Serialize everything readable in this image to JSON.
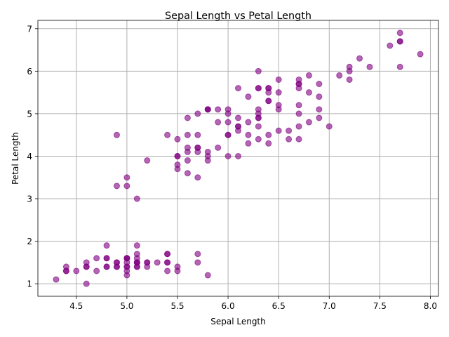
{
  "chart_data": {
    "type": "scatter",
    "title": "Sepal Length vs Petal Length",
    "xlabel": "Sepal Length",
    "ylabel": "Petal Length",
    "xlim": [
      4.12,
      8.08
    ],
    "ylim": [
      0.705,
      7.195
    ],
    "xticks": [
      4.5,
      5.0,
      5.5,
      6.0,
      6.5,
      7.0,
      7.5,
      8.0
    ],
    "xtick_labels": [
      "4.5",
      "5.0",
      "5.5",
      "6.0",
      "6.5",
      "7.0",
      "7.5",
      "8.0"
    ],
    "yticks": [
      1,
      2,
      3,
      4,
      5,
      6,
      7
    ],
    "ytick_labels": [
      "1",
      "2",
      "3",
      "4",
      "5",
      "6",
      "7"
    ],
    "grid": true,
    "marker_color": "#800080",
    "marker_alpha": 0.6,
    "series": [
      {
        "x": [
          5.1,
          4.9,
          4.7,
          4.6,
          5.0,
          5.4,
          4.6,
          5.0,
          4.4,
          4.9,
          5.4,
          4.8,
          4.8,
          4.3,
          5.8,
          5.7,
          5.4,
          5.1,
          5.7,
          5.1,
          5.4,
          5.1,
          4.6,
          5.1,
          4.8,
          5.0,
          5.0,
          5.2,
          5.2,
          4.7,
          4.8,
          5.4,
          5.2,
          5.5,
          4.9,
          5.0,
          5.5,
          4.9,
          4.4,
          5.1,
          5.0,
          4.5,
          4.4,
          5.0,
          5.1,
          4.8,
          5.1,
          4.6,
          5.3,
          5.0,
          7.0,
          6.4,
          6.9,
          5.5,
          6.5,
          5.7,
          6.3,
          4.9,
          6.6,
          5.2,
          5.0,
          5.9,
          6.0,
          6.1,
          5.6,
          6.7,
          5.6,
          5.8,
          6.2,
          5.6,
          5.9,
          6.1,
          6.3,
          6.1,
          6.4,
          6.6,
          6.8,
          6.7,
          6.0,
          5.7,
          5.5,
          5.5,
          5.8,
          6.0,
          5.4,
          6.0,
          6.7,
          6.3,
          5.6,
          5.5,
          5.5,
          6.1,
          5.8,
          5.0,
          5.6,
          5.7,
          5.7,
          6.2,
          5.1,
          5.7,
          6.3,
          5.8,
          7.1,
          6.3,
          6.5,
          7.6,
          4.9,
          7.3,
          6.7,
          7.2,
          6.5,
          6.4,
          6.8,
          5.7,
          5.8,
          6.4,
          6.5,
          7.7,
          7.7,
          6.0,
          6.9,
          5.6,
          7.7,
          6.3,
          6.7,
          7.2,
          6.2,
          6.1,
          6.4,
          7.2,
          7.4,
          7.9,
          6.4,
          6.3,
          6.1,
          7.7,
          6.3,
          6.4,
          6.0,
          6.9,
          6.7,
          6.9,
          5.8,
          6.8,
          6.7,
          6.7,
          6.3,
          6.5,
          6.2,
          5.9
        ],
        "y": [
          1.4,
          1.4,
          1.3,
          1.5,
          1.4,
          1.7,
          1.4,
          1.5,
          1.4,
          1.5,
          1.5,
          1.6,
          1.4,
          1.1,
          1.2,
          1.5,
          1.3,
          1.4,
          1.7,
          1.5,
          1.7,
          1.5,
          1.0,
          1.7,
          1.9,
          1.6,
          1.6,
          1.5,
          1.4,
          1.6,
          1.6,
          1.5,
          1.5,
          1.4,
          1.5,
          1.2,
          1.3,
          1.4,
          1.3,
          1.5,
          1.3,
          1.3,
          1.3,
          1.6,
          1.9,
          1.4,
          1.6,
          1.4,
          1.5,
          1.4,
          4.7,
          4.5,
          4.9,
          4.0,
          4.6,
          4.5,
          4.7,
          3.3,
          4.6,
          3.9,
          3.5,
          4.2,
          4.0,
          4.7,
          3.6,
          4.4,
          4.5,
          4.1,
          4.5,
          3.9,
          4.8,
          4.0,
          4.9,
          4.7,
          4.3,
          4.4,
          4.8,
          5.0,
          4.5,
          3.5,
          3.8,
          3.7,
          3.9,
          5.1,
          4.5,
          4.5,
          4.7,
          4.4,
          4.1,
          4.0,
          4.4,
          4.6,
          4.0,
          3.3,
          4.2,
          4.2,
          4.2,
          4.3,
          3.0,
          4.1,
          6.0,
          5.1,
          5.9,
          5.6,
          5.8,
          6.6,
          4.5,
          6.3,
          5.8,
          6.1,
          5.1,
          5.3,
          5.5,
          5.0,
          5.1,
          5.3,
          5.5,
          6.7,
          6.9,
          5.0,
          5.7,
          4.9,
          6.7,
          4.9,
          5.7,
          6.0,
          4.8,
          4.9,
          5.6,
          5.8,
          6.1,
          6.4,
          5.6,
          5.1,
          5.6,
          6.1,
          5.6,
          5.5,
          4.8,
          5.4,
          5.6,
          5.1,
          5.1,
          5.9,
          5.7,
          5.2,
          5.0,
          5.2,
          5.4,
          5.1
        ]
      }
    ]
  }
}
